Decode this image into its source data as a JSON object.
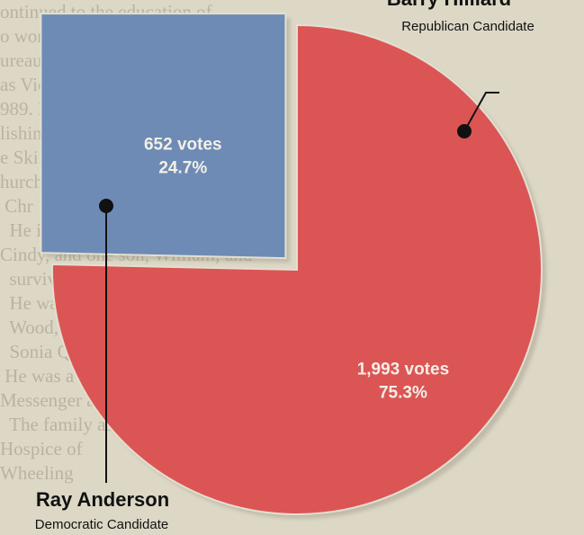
{
  "chart_data": {
    "type": "pie",
    "title": "",
    "slices": [
      {
        "name": "Barry Hilliard",
        "party": "Republican Candidate",
        "votes_label": "1,993 votes",
        "percent_label": "75.3%",
        "votes": 1993,
        "percent": 75.3,
        "color": "#db5555"
      },
      {
        "name": "Ray Anderson",
        "party": "Democratic Candidate",
        "votes_label": "652 votes",
        "percent_label": "24.7%",
        "votes": 652,
        "percent": 24.7,
        "color": "#6d8bb5",
        "exploded": true
      }
    ]
  },
  "colors": {
    "paper": "#ddd8c6",
    "background_text": "#b9b3a0",
    "leader_line": "#111111"
  }
}
